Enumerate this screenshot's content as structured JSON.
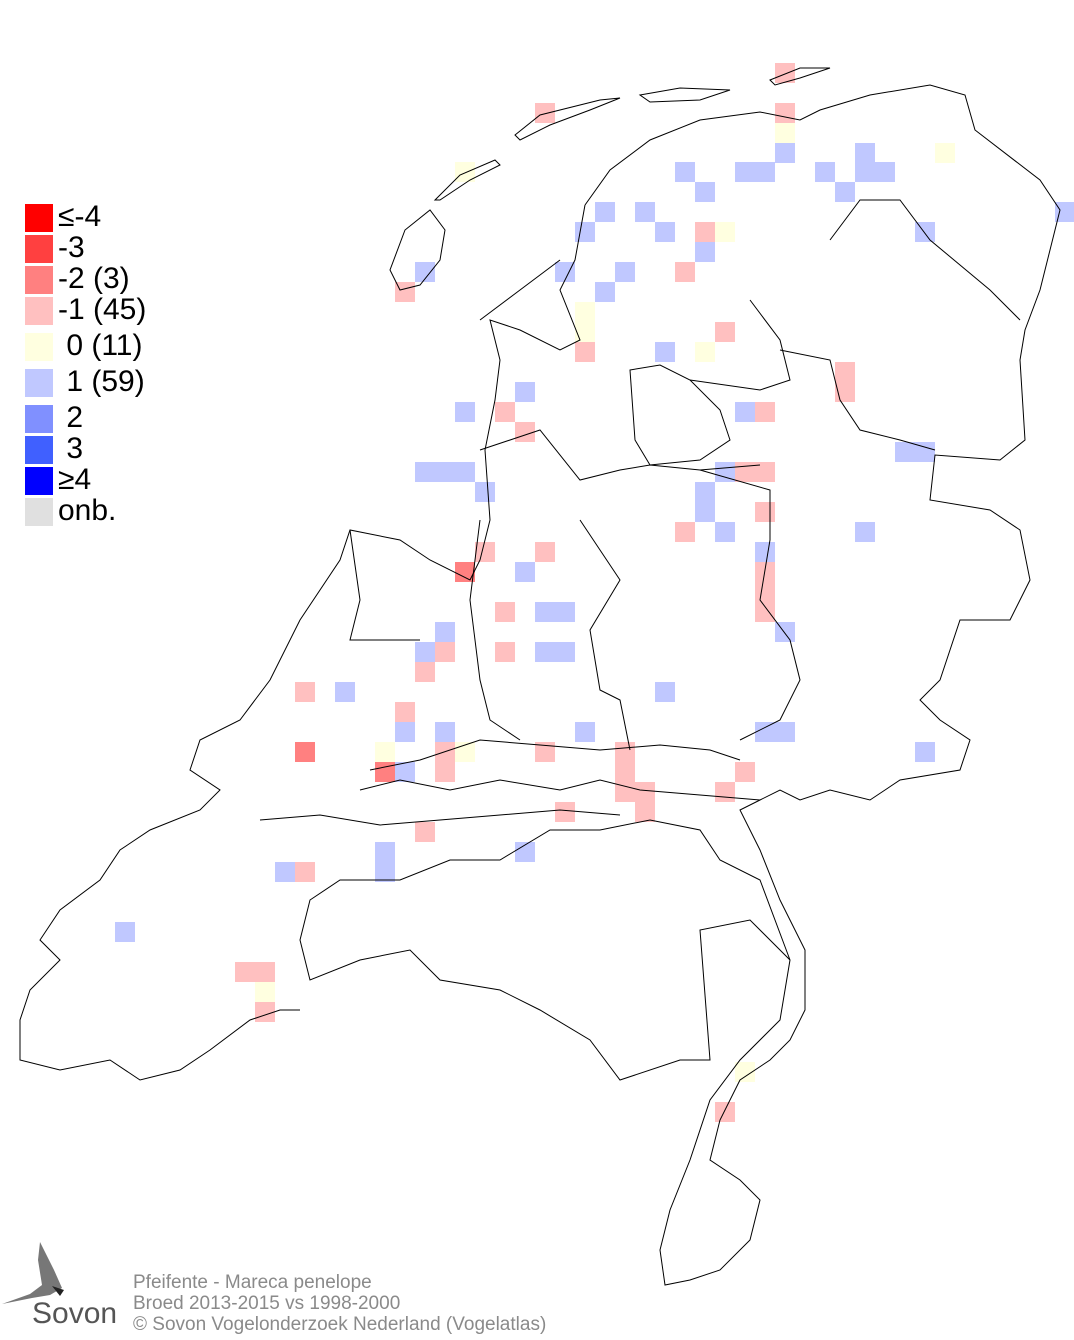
{
  "legend": [
    {
      "label": "≤-4",
      "color": "#ff0000"
    },
    {
      "label": "-3",
      "color": "#ff4040"
    },
    {
      "label": "-2 (3)",
      "color": "#ff8080"
    },
    {
      "label": "-1 (45)",
      "color": "#ffc0c0"
    },
    {
      "label": " 0 (11)",
      "color": "#ffffe0"
    },
    {
      "label": " 1 (59)",
      "color": "#c0c8ff"
    },
    {
      "label": " 2",
      "color": "#8090ff"
    },
    {
      "label": " 3",
      "color": "#4060ff"
    },
    {
      "label": "≥4",
      "color": "#0000ff"
    },
    {
      "label": "onb.",
      "color": "#e0e0e0"
    }
  ],
  "footer": {
    "species": "Pfeifente - Mareca penelope",
    "period": "Broed 2013-2015 vs 1998-2000",
    "copyright": "© Sovon Vogelonderzoek Nederland (Vogelatlas)"
  },
  "logo": {
    "text": "Sovon"
  }
}
